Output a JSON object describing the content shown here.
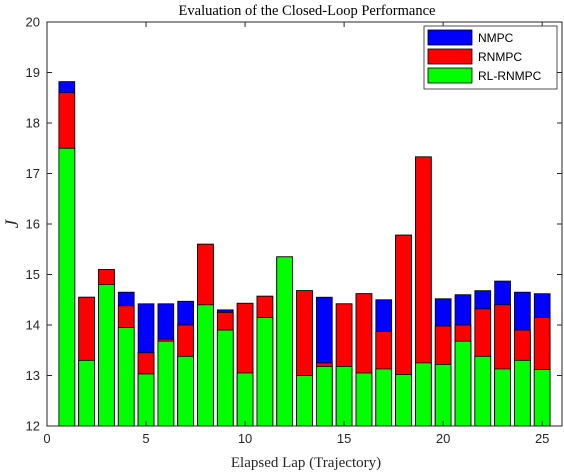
{
  "chart_data": {
    "type": "bar",
    "title": "Evaluation of the Closed-Loop Performance",
    "xlabel": "Elapsed Lap (Trajectory)",
    "ylabel": "J",
    "xlim": [
      0,
      26
    ],
    "ylim": [
      12,
      20
    ],
    "xticks": [
      0,
      5,
      10,
      15,
      20,
      25
    ],
    "yticks": [
      12,
      13,
      14,
      15,
      16,
      17,
      18,
      19,
      20
    ],
    "grid": false,
    "legend_position": "top-right",
    "x": [
      1,
      2,
      3,
      4,
      5,
      6,
      7,
      8,
      9,
      10,
      11,
      12,
      13,
      14,
      15,
      16,
      17,
      18,
      19,
      20,
      21,
      22,
      23,
      24,
      25
    ],
    "series": [
      {
        "name": "NMPC",
        "color": "#0000ff",
        "values": [
          18.82,
          14.55,
          15.1,
          14.65,
          14.42,
          14.42,
          14.47,
          15.6,
          14.3,
          14.43,
          14.57,
          15.35,
          14.68,
          14.55,
          14.42,
          14.62,
          14.5,
          15.78,
          17.33,
          14.52,
          14.6,
          14.68,
          14.87,
          14.65,
          14.62
        ]
      },
      {
        "name": "RNMPC",
        "color": "#ff0000",
        "values": [
          18.6,
          14.55,
          15.1,
          14.38,
          13.45,
          13.72,
          14.0,
          15.6,
          14.25,
          14.43,
          14.57,
          15.35,
          14.68,
          13.25,
          14.42,
          14.62,
          13.87,
          15.78,
          17.33,
          13.98,
          14.0,
          14.32,
          14.4,
          13.9,
          14.15
        ]
      },
      {
        "name": "RL-RNMPC",
        "color": "#00ff00",
        "values": [
          17.5,
          13.3,
          14.8,
          13.95,
          13.03,
          13.68,
          13.38,
          14.4,
          13.9,
          13.05,
          14.15,
          15.35,
          13.0,
          13.18,
          13.18,
          13.05,
          13.13,
          13.02,
          13.25,
          13.22,
          13.68,
          13.38,
          13.13,
          13.3,
          13.12
        ]
      }
    ]
  }
}
